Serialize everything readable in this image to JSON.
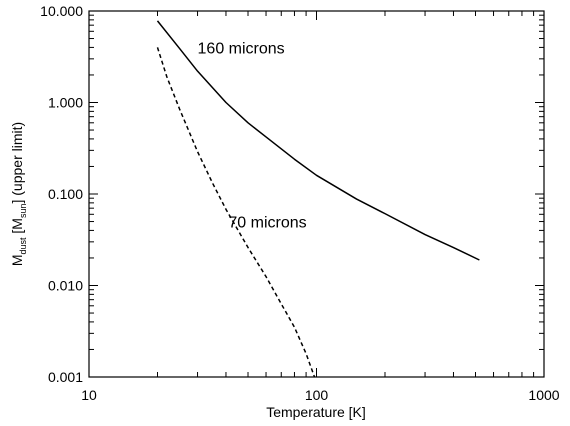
{
  "chart_data": {
    "type": "line",
    "title": "",
    "xlabel": "Temperature [K]",
    "ylabel": {
      "m": "M",
      "m_sub": "dust",
      "open": " [M",
      "unit_sub": "sun",
      "close": "] (upper limit)"
    },
    "x_scale": "log",
    "y_scale": "log",
    "xlim": [
      10,
      1000
    ],
    "ylim": [
      0.001,
      10
    ],
    "x_ticks": [
      {
        "value": 10,
        "label": "10"
      },
      {
        "value": 100,
        "label": "100"
      },
      {
        "value": 1000,
        "label": "1000"
      }
    ],
    "y_ticks": [
      {
        "value": 0.001,
        "label": "0.001"
      },
      {
        "value": 0.01,
        "label": "0.010"
      },
      {
        "value": 0.1,
        "label": "0.100"
      },
      {
        "value": 1,
        "label": "1.000"
      },
      {
        "value": 10,
        "label": "10.000"
      }
    ],
    "grid": false,
    "legend": "none",
    "series": [
      {
        "style": "solid",
        "x": [
          20,
          25,
          30,
          40,
          50,
          60,
          80,
          100,
          150,
          200,
          300,
          400,
          520
        ],
        "y": [
          7.8,
          3.9,
          2.2,
          1.0,
          0.6,
          0.42,
          0.24,
          0.16,
          0.088,
          0.061,
          0.036,
          0.026,
          0.019
        ]
      },
      {
        "style": "dashed",
        "x": [
          20,
          22,
          25,
          30,
          35,
          40,
          50,
          60,
          70,
          80,
          90,
          98
        ],
        "y": [
          4.0,
          1.9,
          0.85,
          0.29,
          0.13,
          0.068,
          0.026,
          0.0125,
          0.0063,
          0.0035,
          0.0018,
          0.001
        ]
      }
    ],
    "annotations": [
      {
        "text": "160 microns",
        "x": 30,
        "y": 4.0
      },
      {
        "text": "70 microns",
        "x": 41,
        "y": 0.05
      }
    ]
  }
}
